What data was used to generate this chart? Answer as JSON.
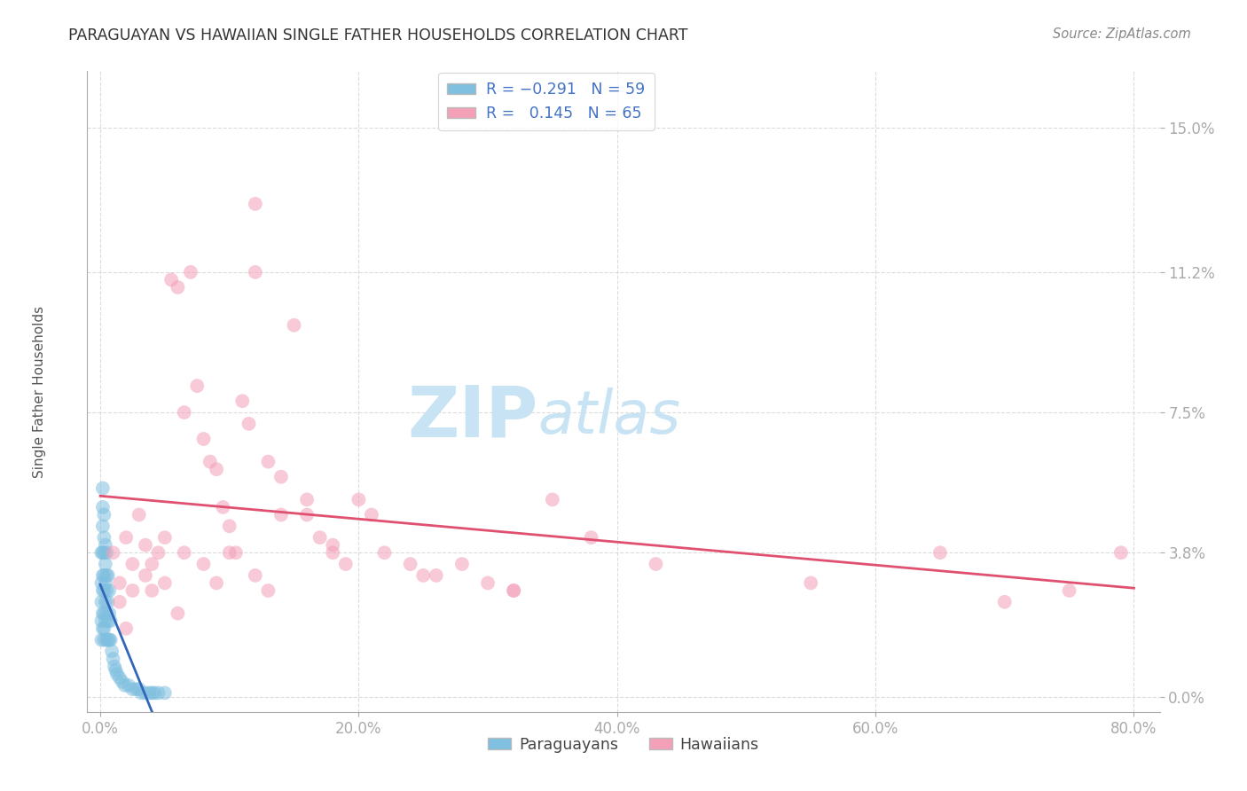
{
  "title": "PARAGUAYAN VS HAWAIIAN SINGLE FATHER HOUSEHOLDS CORRELATION CHART",
  "source": "Source: ZipAtlas.com",
  "ylabel_label": "Single Father Households",
  "legend_label1": "Paraguayans",
  "legend_label2": "Hawaiians",
  "color_blue": "#7fbfdf",
  "color_blue_line": "#3366bb",
  "color_pink": "#f4a0b8",
  "color_pink_line": "#e05070",
  "color_axis_text": "#4472c4",
  "watermark_zip": "ZIP",
  "watermark_atlas": "atlas",
  "watermark_color": "#c8e4f4",
  "background_color": "#ffffff",
  "grid_color": "#cccccc",
  "xlim": [
    0.0,
    0.82
  ],
  "ylim": [
    -0.004,
    0.165
  ],
  "xtick_vals": [
    0.0,
    0.2,
    0.4,
    0.6,
    0.8
  ],
  "ytick_vals": [
    0.0,
    0.038,
    0.075,
    0.112,
    0.15
  ],
  "ytick_labels": [
    "0.0%",
    "3.8%",
    "7.5%",
    "11.2%",
    "15.0%"
  ],
  "par_x": [
    0.001,
    0.001,
    0.001,
    0.001,
    0.001,
    0.002,
    0.002,
    0.002,
    0.002,
    0.002,
    0.002,
    0.002,
    0.002,
    0.003,
    0.003,
    0.003,
    0.003,
    0.003,
    0.003,
    0.003,
    0.003,
    0.004,
    0.004,
    0.004,
    0.004,
    0.004,
    0.005,
    0.005,
    0.005,
    0.005,
    0.005,
    0.006,
    0.006,
    0.006,
    0.006,
    0.007,
    0.007,
    0.007,
    0.008,
    0.008,
    0.009,
    0.01,
    0.011,
    0.012,
    0.013,
    0.015,
    0.017,
    0.019,
    0.022,
    0.025,
    0.028,
    0.03,
    0.032,
    0.035,
    0.038,
    0.04,
    0.042,
    0.045,
    0.05
  ],
  "par_y": [
    0.038,
    0.03,
    0.025,
    0.02,
    0.015,
    0.055,
    0.05,
    0.045,
    0.038,
    0.032,
    0.028,
    0.022,
    0.018,
    0.048,
    0.042,
    0.038,
    0.032,
    0.028,
    0.022,
    0.018,
    0.015,
    0.04,
    0.035,
    0.03,
    0.025,
    0.02,
    0.038,
    0.032,
    0.028,
    0.022,
    0.015,
    0.032,
    0.025,
    0.02,
    0.015,
    0.028,
    0.022,
    0.015,
    0.02,
    0.015,
    0.012,
    0.01,
    0.008,
    0.007,
    0.006,
    0.005,
    0.004,
    0.003,
    0.003,
    0.002,
    0.002,
    0.002,
    0.001,
    0.001,
    0.001,
    0.001,
    0.001,
    0.001,
    0.001
  ],
  "haw_x": [
    0.01,
    0.015,
    0.02,
    0.025,
    0.03,
    0.035,
    0.04,
    0.045,
    0.05,
    0.055,
    0.06,
    0.065,
    0.07,
    0.075,
    0.08,
    0.085,
    0.09,
    0.095,
    0.1,
    0.105,
    0.11,
    0.115,
    0.12,
    0.13,
    0.14,
    0.15,
    0.16,
    0.17,
    0.18,
    0.19,
    0.2,
    0.21,
    0.22,
    0.24,
    0.26,
    0.28,
    0.3,
    0.32,
    0.35,
    0.38,
    0.015,
    0.025,
    0.035,
    0.05,
    0.065,
    0.08,
    0.1,
    0.12,
    0.14,
    0.16,
    0.02,
    0.04,
    0.06,
    0.09,
    0.13,
    0.18,
    0.25,
    0.32,
    0.43,
    0.55,
    0.65,
    0.7,
    0.75,
    0.79,
    0.12
  ],
  "haw_y": [
    0.038,
    0.03,
    0.042,
    0.035,
    0.048,
    0.04,
    0.035,
    0.038,
    0.042,
    0.11,
    0.108,
    0.075,
    0.112,
    0.082,
    0.068,
    0.062,
    0.06,
    0.05,
    0.045,
    0.038,
    0.078,
    0.072,
    0.112,
    0.062,
    0.058,
    0.098,
    0.048,
    0.042,
    0.04,
    0.035,
    0.052,
    0.048,
    0.038,
    0.035,
    0.032,
    0.035,
    0.03,
    0.028,
    0.052,
    0.042,
    0.025,
    0.028,
    0.032,
    0.03,
    0.038,
    0.035,
    0.038,
    0.032,
    0.048,
    0.052,
    0.018,
    0.028,
    0.022,
    0.03,
    0.028,
    0.038,
    0.032,
    0.028,
    0.035,
    0.03,
    0.038,
    0.025,
    0.028,
    0.038,
    0.13
  ]
}
